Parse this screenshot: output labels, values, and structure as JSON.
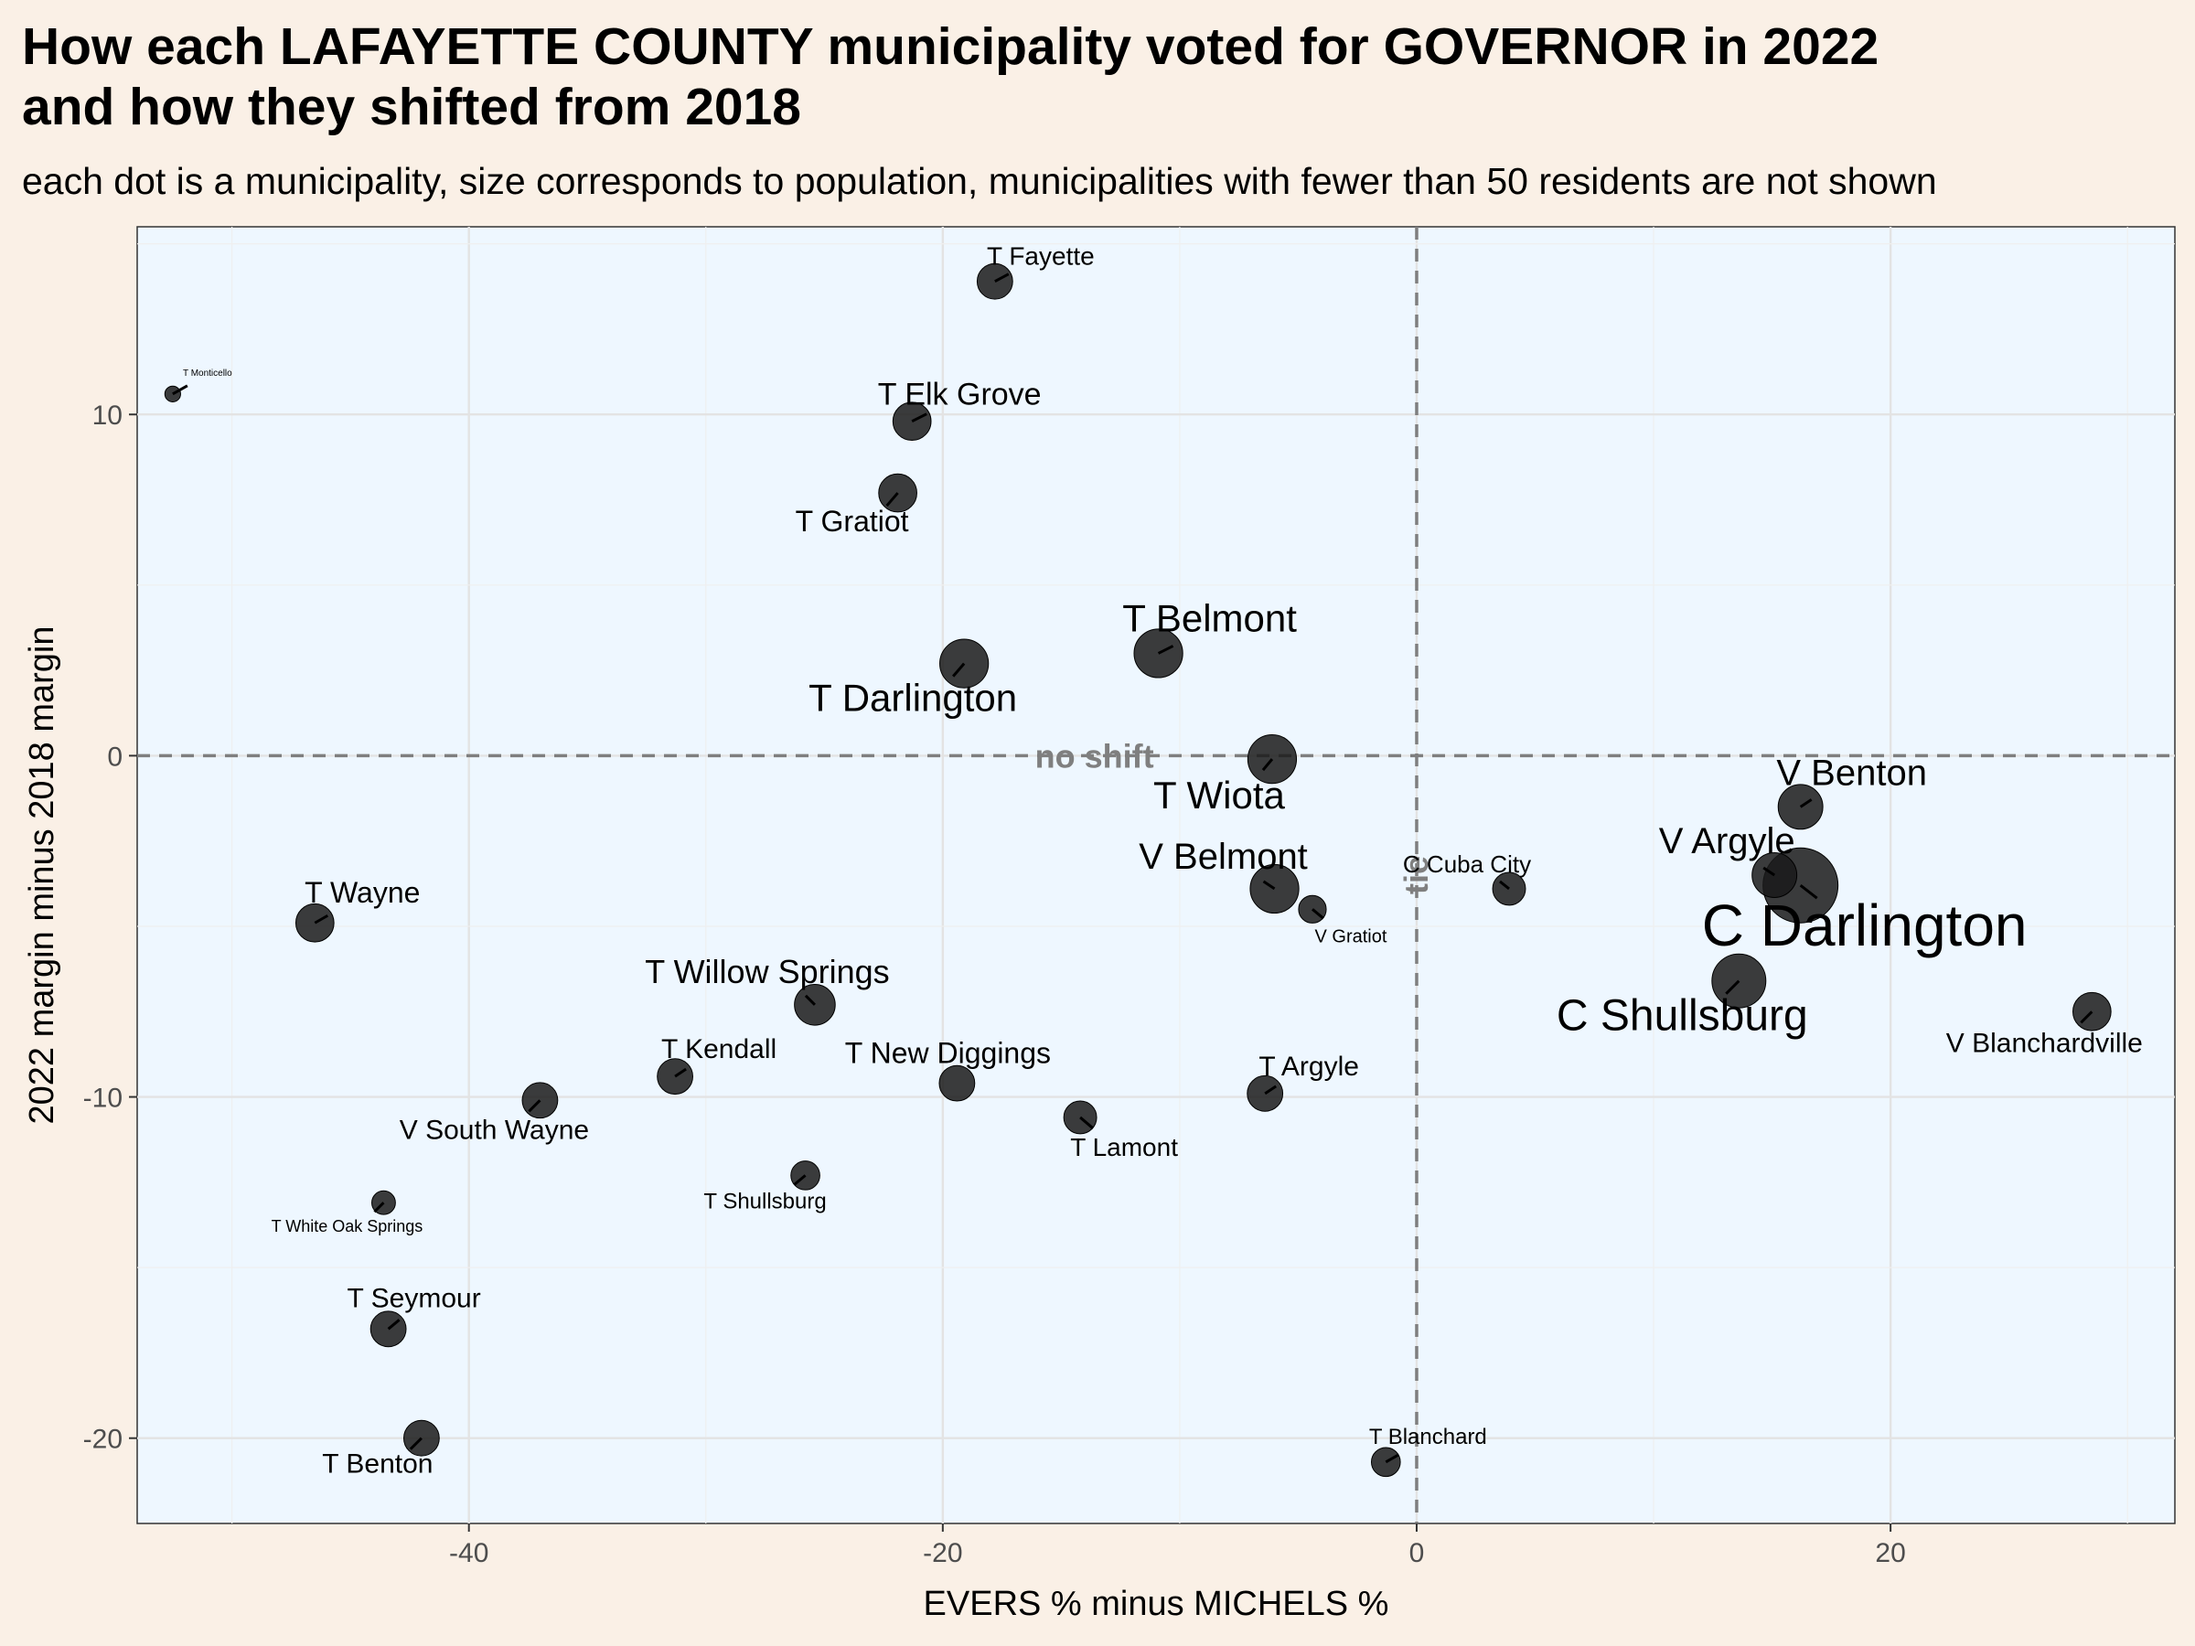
{
  "chart_data": {
    "type": "scatter",
    "title_line1": "How each LAFAYETTE COUNTY municipality voted for GOVERNOR in 2022",
    "title_line2": "and how they shifted from 2018",
    "subtitle": "each dot is a municipality, size corresponds to population, municipalities with fewer than 50 residents are not shown",
    "xlabel": "EVERS % minus MICHELS %",
    "ylabel": "2022 margin minus 2018 margin",
    "xlim": [
      -54,
      32
    ],
    "ylim": [
      -22.5,
      15.5
    ],
    "xticks": [
      -40,
      -20,
      0,
      20
    ],
    "yticks": [
      -20,
      -10,
      0,
      10
    ],
    "grid": true,
    "reference_lines": {
      "x": 0,
      "y": 0,
      "x_label": "tie",
      "y_label": "no shift"
    },
    "colors": {
      "panel": "#eef7ff",
      "page": "#faf0e6",
      "point": "#1a1a1a"
    },
    "points": [
      {
        "name": "T Fayette",
        "x": -17.8,
        "y": 13.9,
        "size": 2.0
      },
      {
        "name": "T Monticello",
        "x": -52.5,
        "y": 10.6,
        "size": 0.5
      },
      {
        "name": "T Elk Grove",
        "x": -21.3,
        "y": 9.8,
        "size": 2.2
      },
      {
        "name": "T Gratiot",
        "x": -21.9,
        "y": 7.7,
        "size": 2.2
      },
      {
        "name": "T Belmont",
        "x": -10.9,
        "y": 3.0,
        "size": 3.0
      },
      {
        "name": "T Darlington",
        "x": -19.1,
        "y": 2.7,
        "size": 3.0
      },
      {
        "name": "T Wiota",
        "x": -6.1,
        "y": -0.1,
        "size": 3.0
      },
      {
        "name": "V Benton",
        "x": 16.2,
        "y": -1.5,
        "size": 2.7
      },
      {
        "name": "V Argyle",
        "x": 15.1,
        "y": -3.5,
        "size": 2.7
      },
      {
        "name": "C Darlington",
        "x": 16.2,
        "y": -3.8,
        "size": 5.0
      },
      {
        "name": "C Cuba City",
        "x": 3.9,
        "y": -3.9,
        "size": 1.8
      },
      {
        "name": "V Belmont",
        "x": -6.0,
        "y": -3.9,
        "size": 3.0
      },
      {
        "name": "V Gratiot",
        "x": -4.4,
        "y": -4.5,
        "size": 1.4
      },
      {
        "name": "T Wayne",
        "x": -46.5,
        "y": -4.9,
        "size": 2.2
      },
      {
        "name": "C Shullsburg",
        "x": 13.6,
        "y": -6.6,
        "size": 3.4
      },
      {
        "name": "V Blanchardville",
        "x": 28.5,
        "y": -7.5,
        "size": 2.2
      },
      {
        "name": "T Willow Springs",
        "x": -25.4,
        "y": -7.3,
        "size": 2.4
      },
      {
        "name": "T Kendall",
        "x": -31.3,
        "y": -9.4,
        "size": 2.0
      },
      {
        "name": "T New Diggings",
        "x": -19.4,
        "y": -9.6,
        "size": 2.0
      },
      {
        "name": "V South Wayne",
        "x": -37.0,
        "y": -10.1,
        "size": 2.0
      },
      {
        "name": "T Argyle",
        "x": -6.4,
        "y": -9.9,
        "size": 2.0
      },
      {
        "name": "T Lamont",
        "x": -14.2,
        "y": -10.6,
        "size": 1.8
      },
      {
        "name": "T Shullsburg",
        "x": -25.8,
        "y": -12.3,
        "size": 1.5
      },
      {
        "name": "T White Oak Springs",
        "x": -43.6,
        "y": -13.1,
        "size": 1.1
      },
      {
        "name": "T Seymour",
        "x": -43.4,
        "y": -16.8,
        "size": 2.0
      },
      {
        "name": "T Benton",
        "x": -42.0,
        "y": -20.0,
        "size": 2.0
      },
      {
        "name": "T Blanchard",
        "x": -1.3,
        "y": -20.7,
        "size": 1.5
      }
    ]
  }
}
